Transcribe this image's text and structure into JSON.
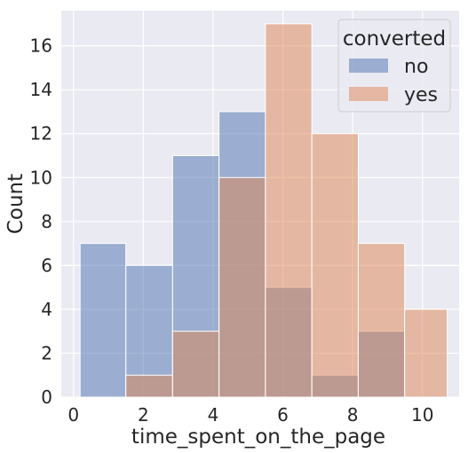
{
  "chart_data": {
    "type": "bar",
    "subtype": "histogram-overlay",
    "title": "",
    "xlabel": "time_spent_on_the_page",
    "ylabel": "Count",
    "xlim": [
      -0.35,
      11.05
    ],
    "ylim": [
      0,
      17.6
    ],
    "xticks": [
      0,
      2,
      4,
      6,
      8,
      10
    ],
    "yticks": [
      0,
      2,
      4,
      6,
      8,
      10,
      12,
      14,
      16
    ],
    "grid": true,
    "legend": {
      "title": "converted",
      "placement": "top-right"
    },
    "bin_edges": [
      0.19,
      1.5,
      2.84,
      4.17,
      5.5,
      6.83,
      8.16,
      9.49,
      10.71
    ],
    "series": [
      {
        "name": "no",
        "color": "#4c72b0",
        "values": [
          7,
          6,
          11,
          13,
          5,
          1,
          3,
          0
        ]
      },
      {
        "name": "yes",
        "color": "#dd8452",
        "values": [
          0,
          1,
          3,
          10,
          17,
          12,
          7,
          4
        ]
      }
    ]
  }
}
